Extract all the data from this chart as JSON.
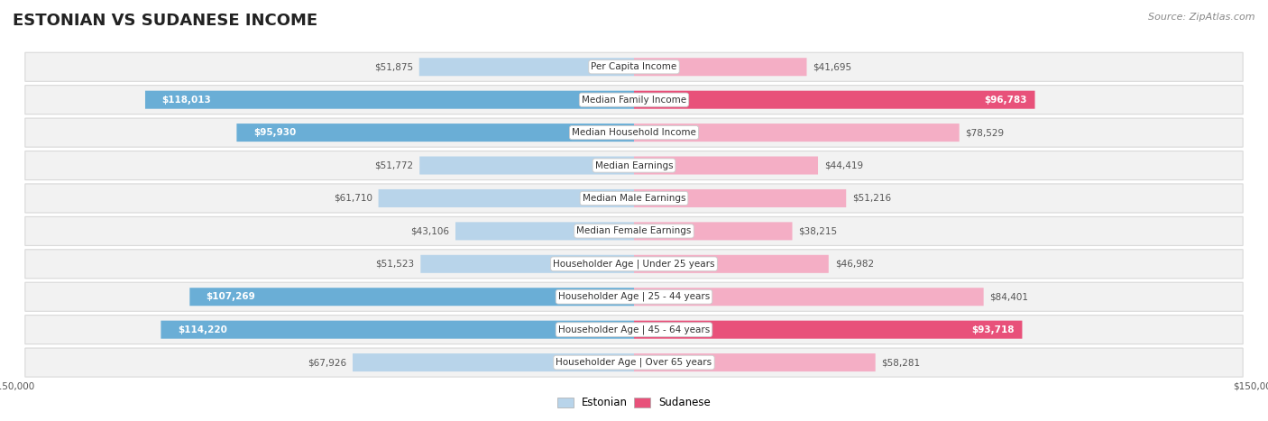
{
  "title": "ESTONIAN VS SUDANESE INCOME",
  "source": "Source: ZipAtlas.com",
  "categories": [
    "Per Capita Income",
    "Median Family Income",
    "Median Household Income",
    "Median Earnings",
    "Median Male Earnings",
    "Median Female Earnings",
    "Householder Age | Under 25 years",
    "Householder Age | 25 - 44 years",
    "Householder Age | 45 - 64 years",
    "Householder Age | Over 65 years"
  ],
  "estonian_values": [
    51875,
    118013,
    95930,
    51772,
    61710,
    43106,
    51523,
    107269,
    114220,
    67926
  ],
  "sudanese_values": [
    41695,
    96783,
    78529,
    44419,
    51216,
    38215,
    46982,
    84401,
    93718,
    58281
  ],
  "max_value": 150000,
  "estonian_color_dark": "#6aaed6",
  "estonian_color_light": "#b8d4ea",
  "sudanese_color_dark": "#e8517a",
  "sudanese_color_light": "#f4aec5",
  "label_threshold": 90000,
  "background_color": "#ffffff",
  "row_bg_color": "#f2f2f2",
  "row_border_color": "#d8d8d8",
  "title_fontsize": 13,
  "label_fontsize": 7.5,
  "category_fontsize": 7.5,
  "legend_fontsize": 8.5,
  "source_fontsize": 8,
  "axis_label_fontsize": 7.5
}
